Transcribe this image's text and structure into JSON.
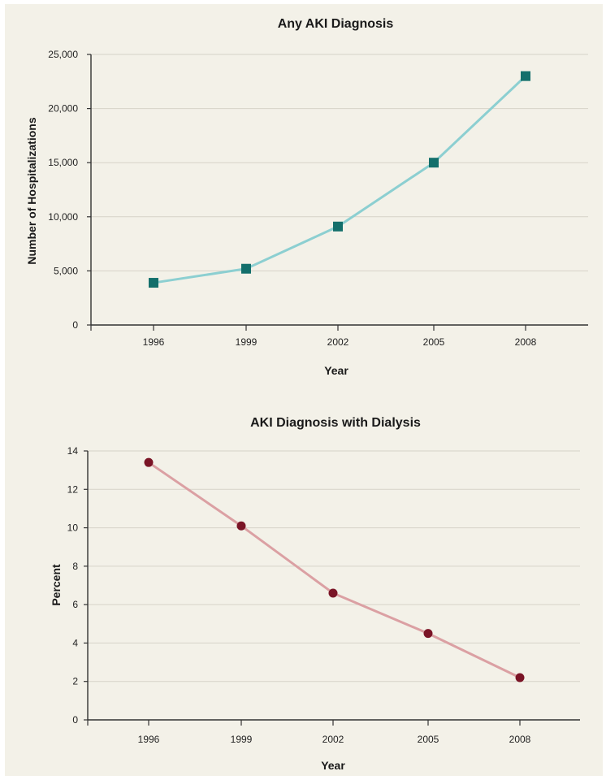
{
  "chart_data": [
    {
      "type": "line",
      "title": "Any AKI Diagnosis",
      "xlabel": "Year",
      "ylabel": "Number of Hospitalizations",
      "categories": [
        "1996",
        "1999",
        "2002",
        "2005",
        "2008"
      ],
      "y_ticks": [
        "0",
        "5,000",
        "10,000",
        "15,000",
        "20,000",
        "25,000"
      ],
      "ylim": [
        0,
        25000
      ],
      "series": [
        {
          "values": [
            3900,
            5200,
            9100,
            15000,
            23000
          ],
          "color": "#8ccfd1",
          "marker_color": "#136f6b",
          "marker": "square"
        }
      ],
      "grid": "horizontal"
    },
    {
      "type": "line",
      "title": "AKI Diagnosis with Dialysis",
      "xlabel": "Year",
      "ylabel": "Percent",
      "categories": [
        "1996",
        "1999",
        "2002",
        "2005",
        "2008"
      ],
      "y_ticks": [
        "0",
        "2",
        "4",
        "6",
        "8",
        "10",
        "12",
        "14"
      ],
      "ylim": [
        0,
        14
      ],
      "series": [
        {
          "values": [
            13.4,
            10.1,
            6.6,
            4.5,
            2.2
          ],
          "color": "#dba0a3",
          "marker_color": "#7a1426",
          "marker": "circle"
        }
      ],
      "grid": "horizontal"
    }
  ]
}
